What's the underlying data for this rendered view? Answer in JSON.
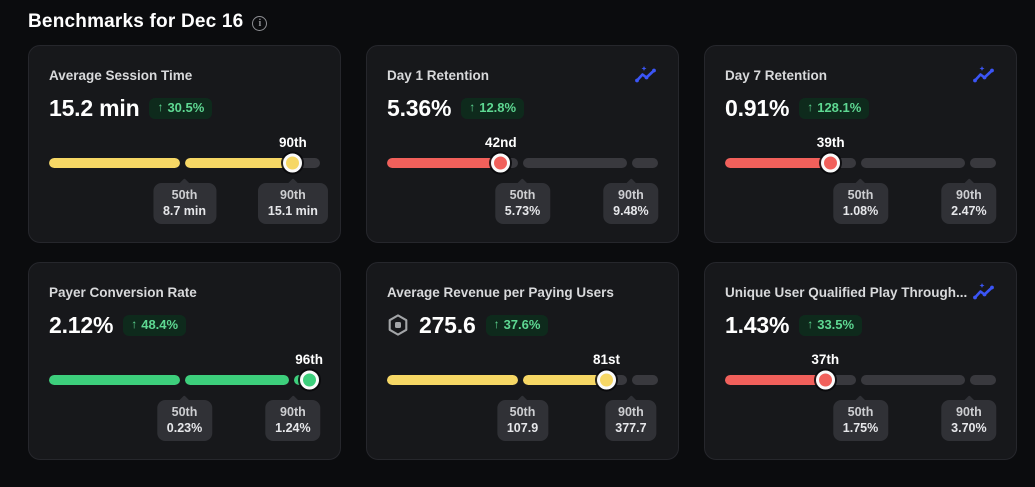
{
  "header": {
    "title": "Benchmarks for Dec 16"
  },
  "icons": {
    "up_arrow": "↑",
    "info": "i"
  },
  "colors": {
    "red": "#f1605b",
    "yellow": "#f6d765",
    "green": "#3dcf7c",
    "track": "#39393e",
    "badge_bg": "#0e2a1c",
    "badge_text": "#5ed892",
    "spark_blue": "#3b55f6",
    "card_bg": "#17181b",
    "page_bg": "#0b0c0e"
  },
  "cards": [
    {
      "title": "Average Session Time",
      "value": "15.2 min",
      "change": "30.5%",
      "direction": "up",
      "percentile": 90,
      "percentile_label": "90th",
      "color": "yellow",
      "spark_icon": false,
      "currency_icon": false,
      "p50_label": "50th",
      "p50_value": "8.7 min",
      "p90_label": "90th",
      "p90_value": "15.1 min"
    },
    {
      "title": "Day 1 Retention",
      "value": "5.36%",
      "change": "12.8%",
      "direction": "up",
      "percentile": 42,
      "percentile_label": "42nd",
      "color": "red",
      "spark_icon": true,
      "currency_icon": false,
      "p50_label": "50th",
      "p50_value": "5.73%",
      "p90_label": "90th",
      "p90_value": "9.48%"
    },
    {
      "title": "Day 7 Retention",
      "value": "0.91%",
      "change": "128.1%",
      "direction": "up",
      "percentile": 39,
      "percentile_label": "39th",
      "color": "red",
      "spark_icon": true,
      "currency_icon": false,
      "p50_label": "50th",
      "p50_value": "1.08%",
      "p90_label": "90th",
      "p90_value": "2.47%"
    },
    {
      "title": "Payer Conversion Rate",
      "value": "2.12%",
      "change": "48.4%",
      "direction": "up",
      "percentile": 96,
      "percentile_label": "96th",
      "color": "green",
      "spark_icon": false,
      "currency_icon": false,
      "p50_label": "50th",
      "p50_value": "0.23%",
      "p90_label": "90th",
      "p90_value": "1.24%"
    },
    {
      "title": "Average Revenue per Paying Users",
      "value": "275.6",
      "change": "37.6%",
      "direction": "up",
      "percentile": 81,
      "percentile_label": "81st",
      "color": "yellow",
      "spark_icon": false,
      "currency_icon": true,
      "p50_label": "50th",
      "p50_value": "107.9",
      "p90_label": "90th",
      "p90_value": "377.7"
    },
    {
      "title": "Unique User Qualified Play Through...",
      "value": "1.43%",
      "change": "33.5%",
      "direction": "up",
      "percentile": 37,
      "percentile_label": "37th",
      "color": "red",
      "spark_icon": true,
      "currency_icon": false,
      "p50_label": "50th",
      "p50_value": "1.75%",
      "p90_label": "90th",
      "p90_value": "3.70%"
    }
  ]
}
